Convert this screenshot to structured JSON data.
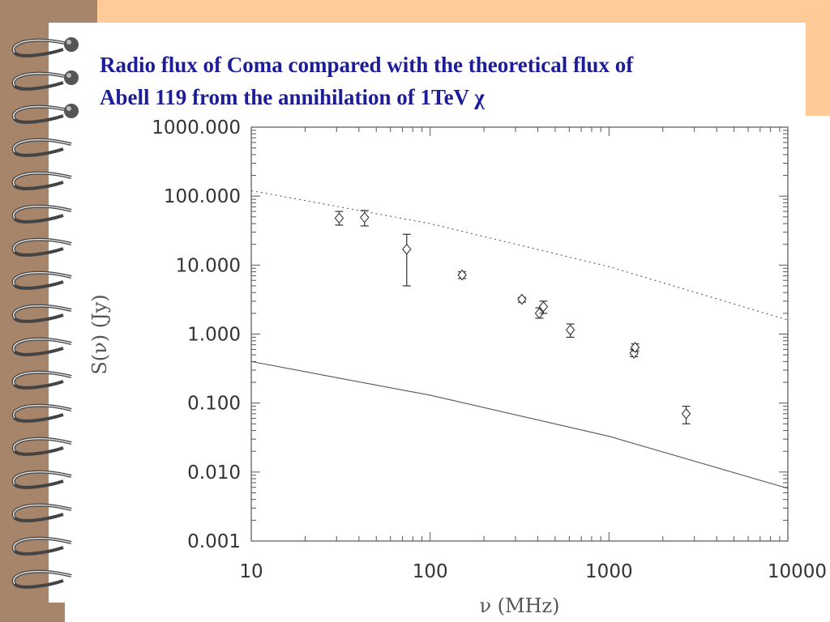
{
  "slide": {
    "title_line1": "Radio flux of Coma compared with  the theoretical flux of",
    "title_line2": "Abell 119 from the annihilation of 1TeV χ"
  },
  "colors": {
    "background": "#ffcc99",
    "strip": "#a7856a",
    "title": "#1d1d99",
    "plot": "#555555"
  },
  "chart_data": {
    "type": "scatter",
    "title": "",
    "xlabel": "ν (MHz)",
    "ylabel": "S(ν) (Jy)",
    "x_scale": "log",
    "y_scale": "log",
    "xlim": [
      10,
      10000
    ],
    "ylim": [
      0.001,
      1000
    ],
    "x_tick_labels": [
      "10",
      "100",
      "1000",
      "10000"
    ],
    "x_tick_values": [
      10,
      100,
      1000,
      10000
    ],
    "y_tick_labels": [
      "0.001",
      "0.010",
      "0.100",
      "1.000",
      "10.000",
      "100.000",
      "1000.000"
    ],
    "y_tick_values": [
      0.001,
      0.01,
      0.1,
      1,
      10,
      100,
      1000
    ],
    "grid": false,
    "series": [
      {
        "style": "diamond-errorbar",
        "points": [
          {
            "x": 31,
            "y": 48,
            "err_low": 38,
            "err_high": 60
          },
          {
            "x": 43,
            "y": 49,
            "err_low": 37,
            "err_high": 62
          },
          {
            "x": 74,
            "y": 17,
            "err_low": 5,
            "err_high": 28
          },
          {
            "x": 151,
            "y": 7.2,
            "err_low": 6.4,
            "err_high": 8.0
          },
          {
            "x": 326,
            "y": 3.2,
            "err_low": 2.9,
            "err_high": 3.4
          },
          {
            "x": 408,
            "y": 2.0,
            "err_low": 1.7,
            "err_high": 2.4
          },
          {
            "x": 430,
            "y": 2.5,
            "err_low": 2.0,
            "err_high": 3.0
          },
          {
            "x": 608,
            "y": 1.15,
            "err_low": 0.9,
            "err_high": 1.4
          },
          {
            "x": 1380,
            "y": 0.53,
            "err_low": 0.47,
            "err_high": 0.6
          },
          {
            "x": 1400,
            "y": 0.64,
            "err_low": 0.57,
            "err_high": 0.72
          },
          {
            "x": 2700,
            "y": 0.07,
            "err_low": 0.05,
            "err_high": 0.09
          }
        ]
      },
      {
        "style": "dotted-line",
        "points": [
          [
            10,
            120
          ],
          [
            100,
            40
          ],
          [
            1000,
            9.5
          ],
          [
            10000,
            1.6
          ]
        ]
      },
      {
        "style": "solid-line",
        "points": [
          [
            10,
            0.4
          ],
          [
            100,
            0.13
          ],
          [
            1000,
            0.033
          ],
          [
            10000,
            0.0058
          ]
        ]
      }
    ]
  }
}
